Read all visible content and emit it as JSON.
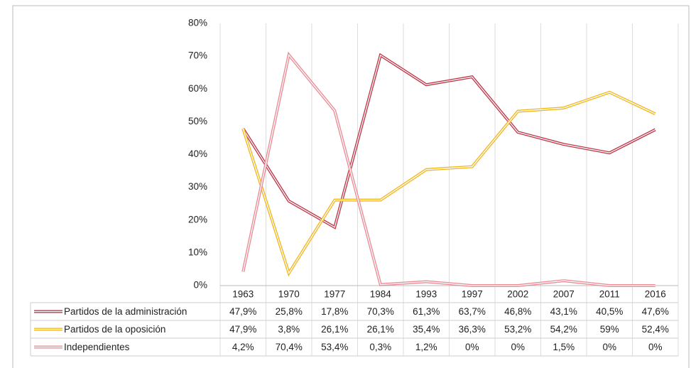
{
  "chart_data": {
    "type": "line",
    "categories": [
      "1963",
      "1970",
      "1977",
      "1984",
      "1993",
      "1997",
      "2002",
      "2007",
      "2011",
      "2016"
    ],
    "series": [
      {
        "name": "Partidos de la administración",
        "color": "#c0394b",
        "values": [
          47.9,
          25.8,
          17.8,
          70.3,
          61.3,
          63.7,
          46.8,
          43.1,
          40.5,
          47.6
        ],
        "value_labels": [
          "47,9%",
          "25,8%",
          "17,8%",
          "70,3%",
          "61,3%",
          "63,7%",
          "46,8%",
          "43,1%",
          "40,5%",
          "47,6%"
        ]
      },
      {
        "name": "Partidos de la oposición",
        "color": "#f2b822",
        "values": [
          47.9,
          3.8,
          26.1,
          26.1,
          35.4,
          36.3,
          53.2,
          54.2,
          59,
          52.4
        ],
        "value_labels": [
          "47,9%",
          "3,8%",
          "26,1%",
          "26,1%",
          "35,4%",
          "36,3%",
          "53,2%",
          "54,2%",
          "59%",
          "52,4%"
        ]
      },
      {
        "name": "Independientes",
        "color": "#eb8c96",
        "values": [
          4.2,
          70.4,
          53.4,
          0.3,
          1.2,
          0,
          0,
          1.5,
          0,
          0
        ],
        "value_labels": [
          "4,2%",
          "70,4%",
          "53,4%",
          "0,3%",
          "1,2%",
          "0%",
          "0%",
          "1,5%",
          "0%",
          "0%"
        ]
      }
    ],
    "ylim": [
      0,
      80
    ],
    "yticks": [
      {
        "value": 0,
        "label": "0%"
      },
      {
        "value": 10,
        "label": "10%"
      },
      {
        "value": 20,
        "label": "20%"
      },
      {
        "value": 30,
        "label": "30%"
      },
      {
        "value": 40,
        "label": "40%"
      },
      {
        "value": 50,
        "label": "50%"
      },
      {
        "value": 60,
        "label": "60%"
      },
      {
        "value": 70,
        "label": "70%"
      },
      {
        "value": 80,
        "label": "80%"
      }
    ]
  }
}
